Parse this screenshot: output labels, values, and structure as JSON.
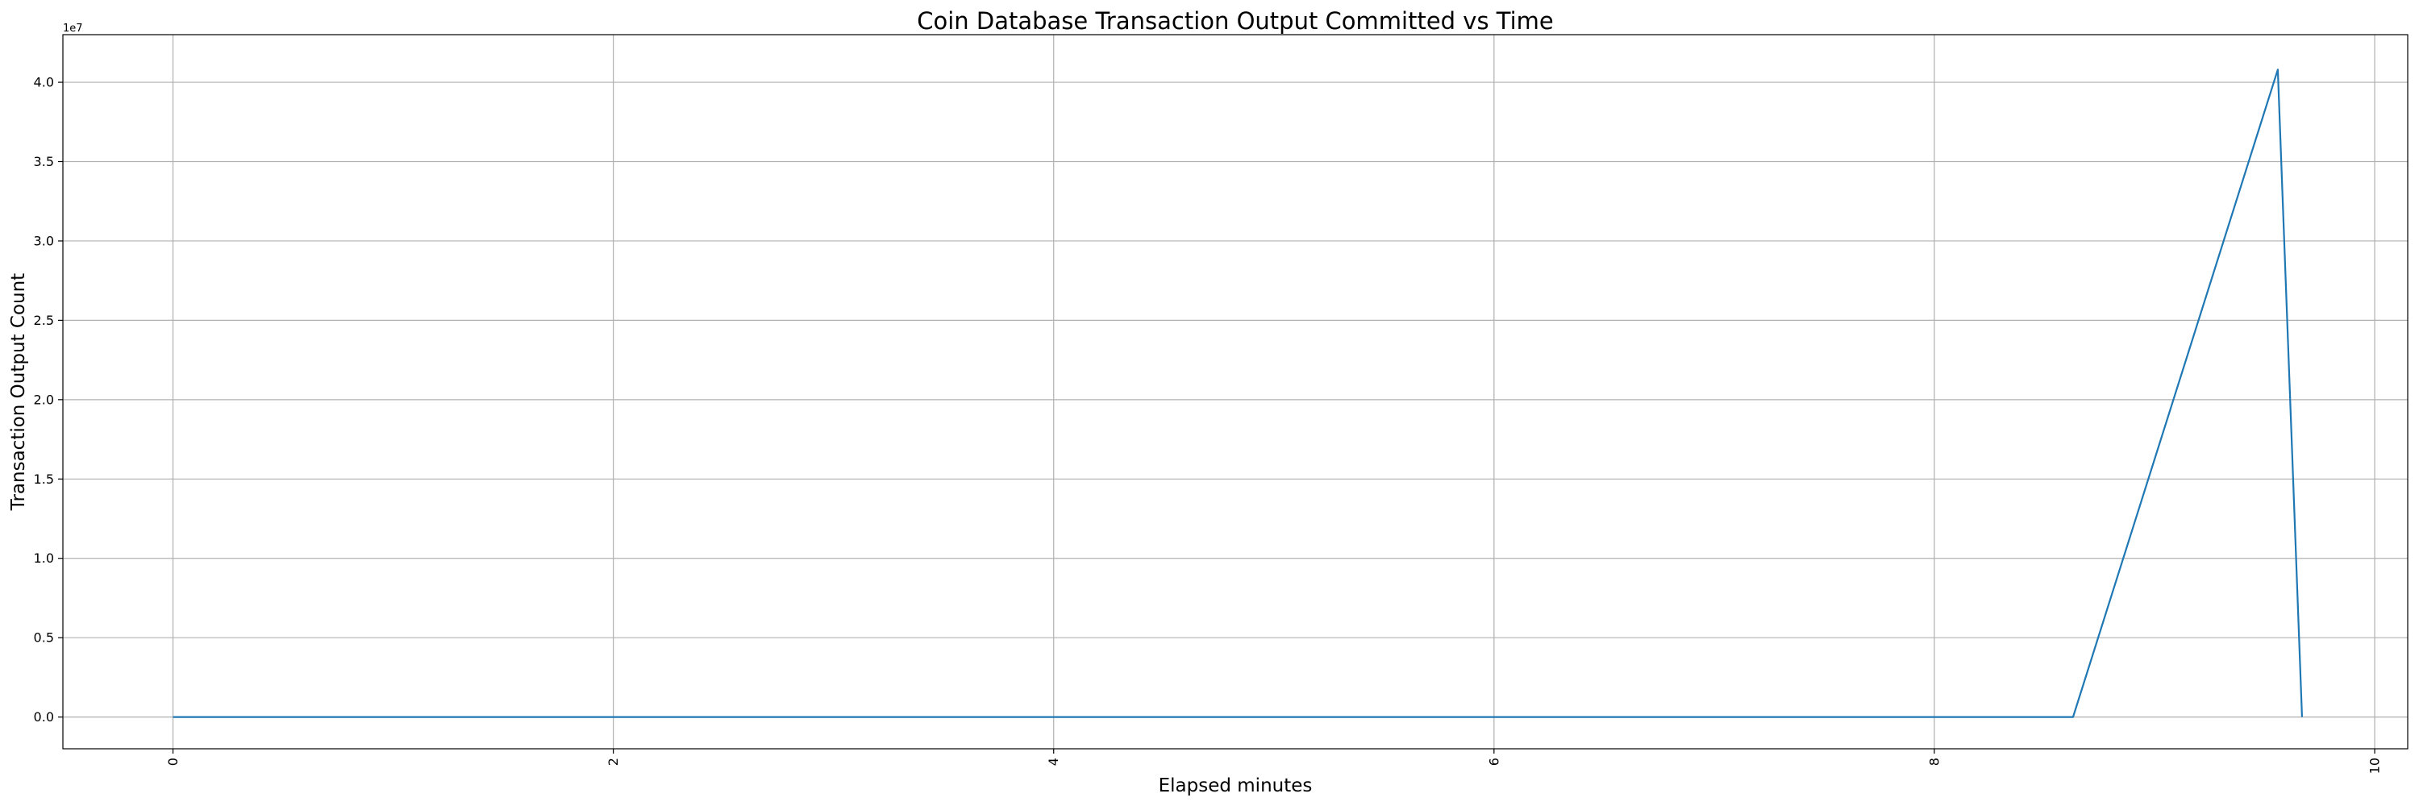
{
  "chart_data": {
    "type": "line",
    "title": "Coin Database Transaction Output Committed vs Time",
    "xlabel": "Elapsed minutes",
    "ylabel": "Transaction Output Count",
    "y_offset_label": "1e7",
    "xlim": [
      -0.5,
      10.15
    ],
    "ylim": [
      -2000000,
      43000000
    ],
    "x_ticks": [
      0,
      2,
      4,
      6,
      8,
      10
    ],
    "x_tick_labels": [
      "0",
      "2",
      "4",
      "6",
      "8",
      "10"
    ],
    "y_ticks": [
      0,
      5000000,
      10000000,
      15000000,
      20000000,
      25000000,
      30000000,
      35000000,
      40000000
    ],
    "y_tick_labels": [
      "0.0",
      "0.5",
      "1.0",
      "1.5",
      "2.0",
      "2.5",
      "3.0",
      "3.5",
      "4.0"
    ],
    "x_tick_rotation": "vertical",
    "grid": true,
    "series": [
      {
        "color": "#1f77b4",
        "x": [
          0,
          8.63,
          9.56,
          9.67
        ],
        "y": [
          0,
          0,
          40800000,
          0
        ]
      }
    ]
  }
}
